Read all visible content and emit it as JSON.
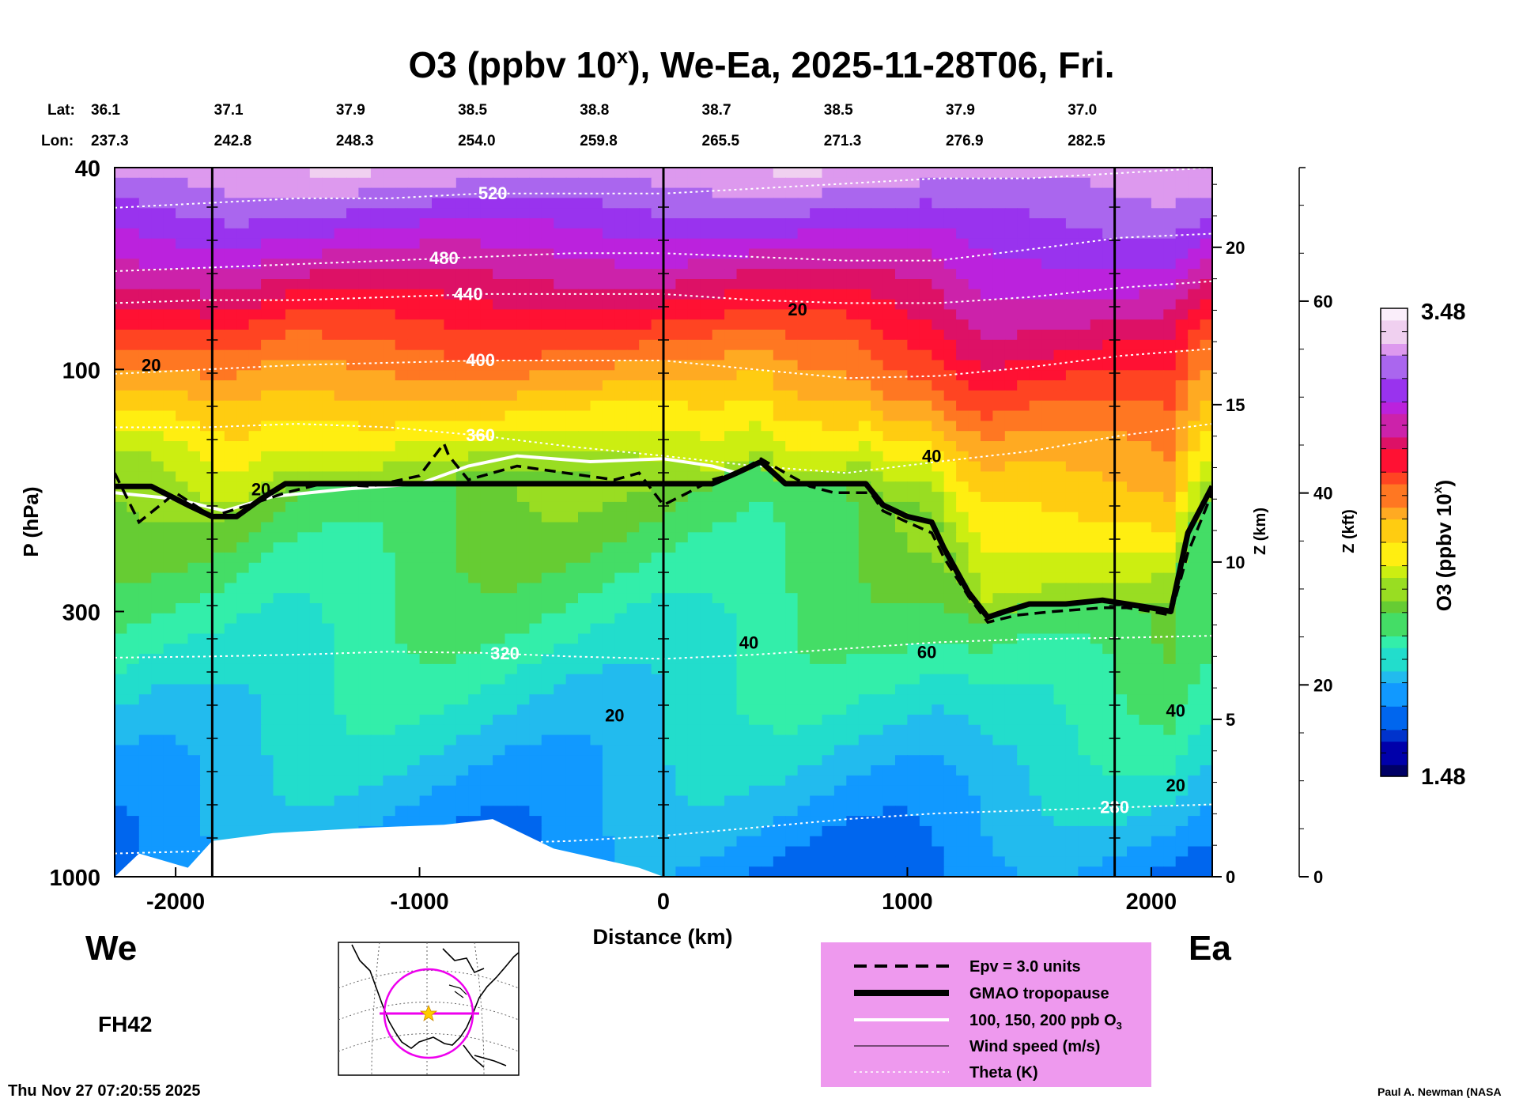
{
  "colors": {
    "background": "#ffffff",
    "legend_box": "#ee99ee",
    "ramp": [
      "#000066",
      "#0000aa",
      "#0033cc",
      "#0066ee",
      "#1199ff",
      "#22bbee",
      "#22ddcc",
      "#33eeaa",
      "#44dd66",
      "#66cc33",
      "#99dd22",
      "#ccee11",
      "#ffee11",
      "#ffcc11",
      "#ffaa22",
      "#ff7722",
      "#ff4422",
      "#ff1133",
      "#dd1166",
      "#cc22aa",
      "#bb22dd",
      "#9933ee",
      "#aa66ee",
      "#dd99ee",
      "#f0d0f0",
      "#faeefa"
    ]
  },
  "chart_data": {
    "type": "heatmap",
    "title": "O3 (ppbv 10",
    "title_sup": "x",
    "title_rest": "), We-Ea, 2025-11-28T06, Fri.",
    "xlabel": "Distance (km)",
    "ylabel": "P (hPa)",
    "y2label": "Z (km)",
    "y3label": "Z (kft)",
    "colorbar_label": "O3 (ppbv 10",
    "colorbar_sup": "x",
    "colorbar_label_end": ")",
    "colorbar_range": [
      1.48,
      3.48
    ],
    "colorbar_max_label": "3.48",
    "colorbar_min_label": "1.48",
    "xlim": [
      -2250,
      2250
    ],
    "ylim_hpa": [
      1000,
      40
    ],
    "x_ticks": [
      -2000,
      -1000,
      0,
      1000,
      2000
    ],
    "x_tick_labels": [
      "-2000",
      "-1000",
      "0",
      "1000",
      "2000"
    ],
    "y_ticks": [
      40,
      100,
      300,
      1000
    ],
    "y_tick_labels": [
      "40",
      "100",
      "300",
      "1000"
    ],
    "z_km_ticks": [
      0,
      5,
      10,
      15,
      20
    ],
    "z_km_labels": [
      "0",
      "5",
      "10",
      "15",
      "20"
    ],
    "z_kft_ticks": [
      0,
      20,
      40,
      60
    ],
    "z_kft_labels": [
      "0",
      "20",
      "40",
      "60"
    ],
    "vertical_markers_km": [
      -1850,
      0,
      1850
    ],
    "lat_label": "Lat:",
    "lon_label": "Lon:",
    "lat_values": [
      "36.1",
      "37.1",
      "37.9",
      "38.5",
      "38.8",
      "38.7",
      "38.5",
      "37.9",
      "37.0"
    ],
    "lon_values": [
      "237.3",
      "242.8",
      "248.3",
      "254.0",
      "259.8",
      "265.5",
      "271.3",
      "276.9",
      "282.5"
    ],
    "lat_lon_distance_km": [
      -2200,
      -1700,
      -1200,
      -700,
      -200,
      300,
      800,
      1300,
      1800
    ],
    "tropopause": {
      "x": [
        -2250,
        -2100,
        -1950,
        -1850,
        -1750,
        -1650,
        -1550,
        -1400,
        -1000,
        -500,
        0,
        200,
        300,
        400,
        500,
        600,
        700,
        830,
        900,
        1000,
        1100,
        1150,
        1250,
        1330,
        1400,
        1500,
        1650,
        1800,
        1900,
        2000,
        2080,
        2150,
        2250
      ],
      "p": [
        170,
        170,
        185,
        195,
        195,
        180,
        168,
        168,
        168,
        168,
        168,
        168,
        160,
        152,
        168,
        168,
        168,
        168,
        185,
        195,
        200,
        225,
        275,
        308,
        300,
        290,
        290,
        285,
        290,
        295,
        300,
        210,
        170
      ]
    },
    "epv": {
      "x": [
        -2250,
        -2150,
        -2000,
        -1850,
        -1700,
        -1550,
        -1400,
        -1200,
        -1000,
        -900,
        -880,
        -800,
        -600,
        -400,
        -200,
        -100,
        0,
        100,
        200,
        300,
        400,
        500,
        600,
        700,
        850,
        900,
        1000,
        1100,
        1150,
        1250,
        1330,
        1450,
        1600,
        1800,
        1900,
        2000,
        2080,
        2150,
        2250
      ],
      "p": [
        160,
        200,
        175,
        195,
        185,
        175,
        168,
        170,
        162,
        140,
        148,
        165,
        155,
        160,
        165,
        160,
        185,
        175,
        165,
        160,
        150,
        160,
        170,
        175,
        175,
        190,
        200,
        210,
        235,
        280,
        315,
        305,
        300,
        295,
        295,
        300,
        305,
        230,
        175
      ]
    },
    "theta_levels": [
      {
        "label": "520",
        "label_at_km": -700,
        "p": [
          48,
          47,
          46,
          46,
          45,
          45,
          45,
          44,
          43,
          42,
          42,
          41,
          40
        ]
      },
      {
        "label": "480",
        "label_at_km": -900,
        "p": [
          64,
          63,
          62,
          61,
          60,
          59,
          59,
          60,
          61,
          61,
          58,
          55,
          54
        ]
      },
      {
        "label": "440",
        "label_at_km": -800,
        "p": [
          74,
          73,
          73,
          72,
          71,
          71,
          71,
          73,
          74,
          74,
          72,
          69,
          67
        ]
      },
      {
        "label": "400",
        "label_at_km": -750,
        "p": [
          102,
          100,
          98,
          97,
          96,
          96,
          96,
          100,
          104,
          103,
          99,
          94,
          91
        ]
      },
      {
        "label": "360",
        "label_at_km": -750,
        "p": [
          130,
          130,
          128,
          130,
          135,
          142,
          148,
          155,
          160,
          152,
          145,
          135,
          128
        ]
      },
      {
        "label": "320",
        "label_at_km": -650,
        "p": [
          370,
          368,
          365,
          360,
          362,
          368,
          372,
          365,
          355,
          345,
          340,
          338,
          335
        ]
      },
      {
        "label": "280",
        "label_at_km": 1850,
        "p": [
          900,
          890,
          880,
          870,
          860,
          850,
          830,
          800,
          770,
          750,
          740,
          730,
          720
        ]
      }
    ],
    "theta_x_km": [
      -2250,
      -1875,
      -1500,
      -1125,
      -750,
      -375,
      0,
      375,
      750,
      1125,
      1500,
      1875,
      2250
    ],
    "wind_labels": [
      {
        "text": "20",
        "x_km": -2100,
        "p": 98
      },
      {
        "text": "20",
        "x_km": 550,
        "p": 76
      },
      {
        "text": "40",
        "x_km": 1100,
        "p": 148
      },
      {
        "text": "20",
        "x_km": -1650,
        "p": 172
      },
      {
        "text": "40",
        "x_km": 350,
        "p": 345
      },
      {
        "text": "60",
        "x_km": 1080,
        "p": 360
      },
      {
        "text": "20",
        "x_km": -200,
        "p": 480
      },
      {
        "text": "40",
        "x_km": 2100,
        "p": 470
      },
      {
        "text": "20",
        "x_km": 2100,
        "p": 660
      }
    ],
    "o3_contours": [
      {
        "label": "100, 150, 200 ppb O3",
        "x_km": [
          -2250,
          -2000,
          -1800,
          -1600,
          -1300,
          -1000,
          -800,
          -600,
          -300,
          0,
          200,
          300
        ],
        "p": [
          175,
          180,
          190,
          178,
          172,
          168,
          155,
          148,
          152,
          150,
          155,
          160
        ]
      }
    ]
  },
  "left_label": "We",
  "right_label": "Ea",
  "forecast_hour": "FH42",
  "timestamp": "Thu Nov 27 07:20:55 2025",
  "credit": "Paul A. Newman (NASA",
  "legend": {
    "epv": "Epv = 3.0 units",
    "tropopause": "GMAO tropopause",
    "o3": "100, 150, 200 ppb O",
    "o3_sub": "3",
    "wind": "Wind speed (m/s)",
    "theta": "Theta (K)"
  },
  "inset_map": {
    "line_color": "#ee00ee",
    "star_color": "#ffcc00"
  }
}
